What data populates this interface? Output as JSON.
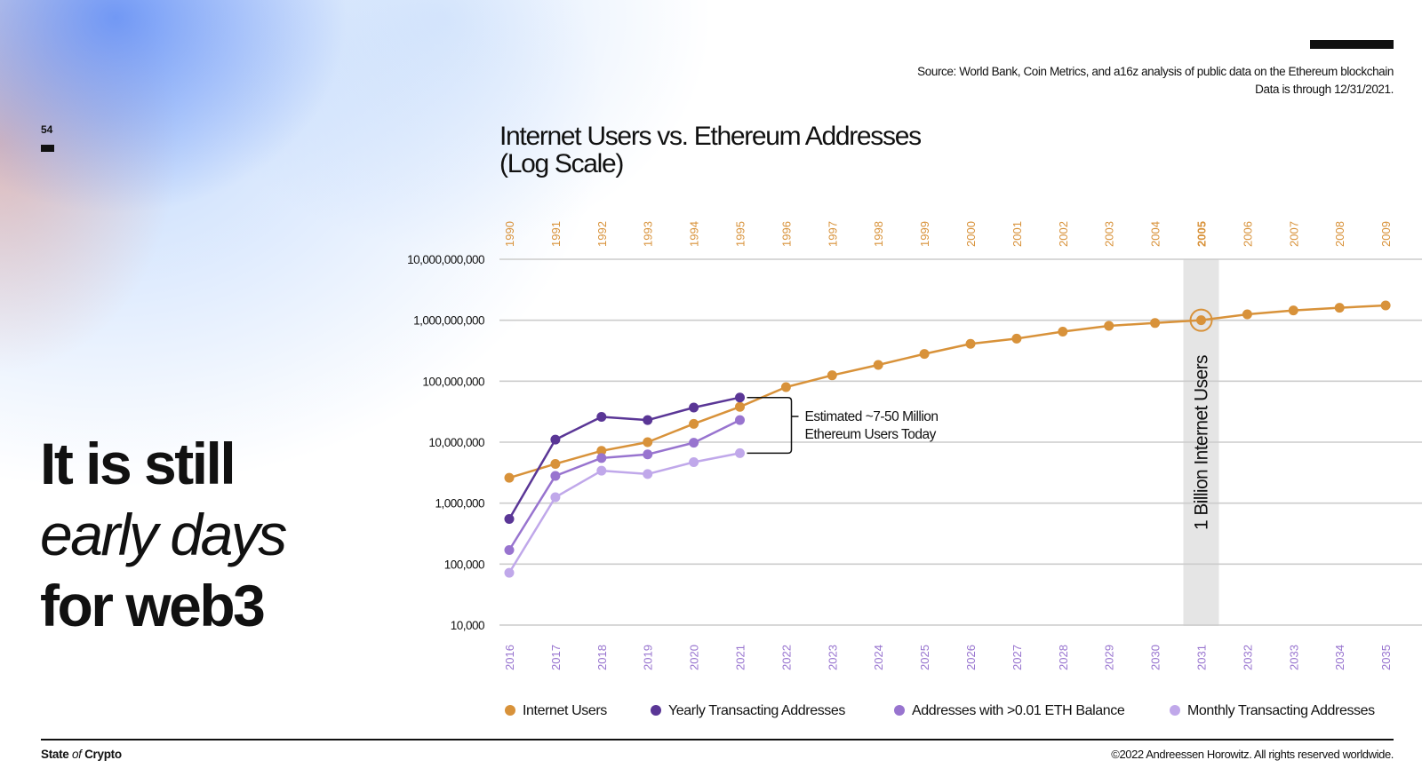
{
  "slide": {
    "page_number": "54",
    "source_line1": "Source: World Bank, Coin Metrics, and a16z analysis of public data on the Ethereum blockchain",
    "source_line2": "Data is through 12/31/2021.",
    "headline": {
      "line1": "It is still",
      "line2": "early days",
      "line3": "for web3"
    },
    "footer": {
      "brand_main": "State ",
      "brand_of": "of",
      "brand_end": " Crypto",
      "copyright": "©2022 Andreessen Horowitz. All rights reserved worldwide."
    }
  },
  "colors": {
    "internet_users": "#d8923a",
    "yearly_transacting": "#5a3696",
    "eth_balance": "#9874cf",
    "monthly_transacting": "#c0a8ea",
    "top_axis_text": "#d8923a",
    "bottom_axis_text": "#9874cf",
    "grid": "#cccccc",
    "highlight_band": "#e5e5e5"
  },
  "chart_data": {
    "type": "line",
    "title_line1": "Internet Users vs. Ethereum Addresses",
    "title_line2": "(Log Scale)",
    "y_scale": "log",
    "ylim": [
      10000,
      10000000000
    ],
    "y_ticks": [
      {
        "value": 10000,
        "label": "10,000"
      },
      {
        "value": 100000,
        "label": "100,000"
      },
      {
        "value": 1000000,
        "label": "1,000,000"
      },
      {
        "value": 10000000,
        "label": "10,000,000"
      },
      {
        "value": 100000000,
        "label": "100,000,000"
      },
      {
        "value": 1000000000,
        "label": "1,000,000,000"
      },
      {
        "value": 10000000000,
        "label": "10,000,000,000"
      }
    ],
    "top_x_labels": [
      "1990",
      "1991",
      "1992",
      "1993",
      "1994",
      "1995",
      "1996",
      "1997",
      "1998",
      "1999",
      "2000",
      "2001",
      "2002",
      "2003",
      "2004",
      "2005",
      "2006",
      "2007",
      "2008",
      "2009"
    ],
    "top_x_highlight": "2005",
    "bottom_x_labels": [
      "2016",
      "2017",
      "2018",
      "2019",
      "2020",
      "2021",
      "2022",
      "2023",
      "2024",
      "2025",
      "2026",
      "2027",
      "2028",
      "2029",
      "2030",
      "2031",
      "2032",
      "2033",
      "2034",
      "2035"
    ],
    "grid": true,
    "legend_position": "bottom",
    "series": [
      {
        "name": "Internet Users",
        "color_key": "internet_users",
        "values": [
          2600000,
          4400000,
          7200000,
          10000000,
          20000000,
          38000000,
          80000000,
          125000000,
          185000000,
          280000000,
          410000000,
          500000000,
          650000000,
          810000000,
          900000000,
          1000000000,
          1250000000,
          1450000000,
          1600000000,
          1750000000
        ]
      },
      {
        "name": "Yearly Transacting Addresses",
        "color_key": "yearly_transacting",
        "values": [
          550000,
          11000000,
          26000000,
          23000000,
          37000000,
          54000000
        ]
      },
      {
        "name": "Addresses with >0.01 ETH Balance",
        "color_key": "eth_balance",
        "values": [
          170000,
          2800000,
          5500000,
          6300000,
          9800000,
          23000000
        ]
      },
      {
        "name": "Monthly Transacting Addresses",
        "color_key": "monthly_transacting",
        "values": [
          72000,
          1250000,
          3400000,
          3000000,
          4700000,
          6600000
        ]
      }
    ],
    "annotations": {
      "bracket_line1": "Estimated ~7-50 Million",
      "bracket_line2": "Ethereum Users Today",
      "highlight_index": 15,
      "highlight_label": "1 Billion Internet Users"
    }
  }
}
